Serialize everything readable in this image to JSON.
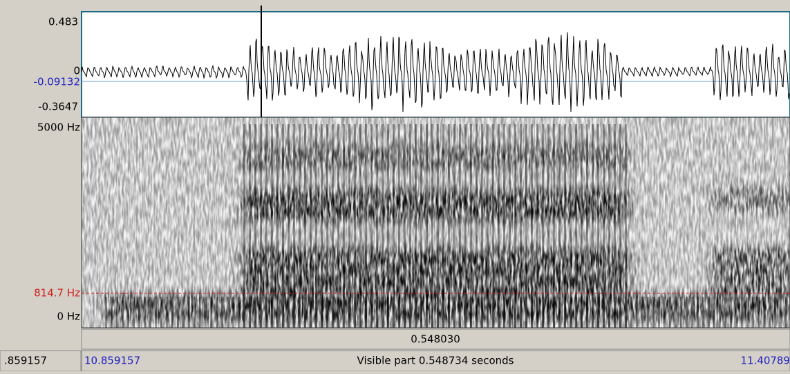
{
  "waveform": {
    "labels": {
      "max": "0.483",
      "zero": "0",
      "cursor": "-0.09132",
      "min": "-0.3647"
    }
  },
  "spectrogram": {
    "labels": {
      "top": "5000 Hz",
      "cursor": "814.7 Hz",
      "bottom": "0 Hz"
    }
  },
  "time_bar": {
    "selection": "0.548030"
  },
  "status_bar": {
    "left_partial": ".859157",
    "start": "10.859157",
    "visible": "Visible part 0.548734 seconds",
    "end": "11.40789"
  }
}
